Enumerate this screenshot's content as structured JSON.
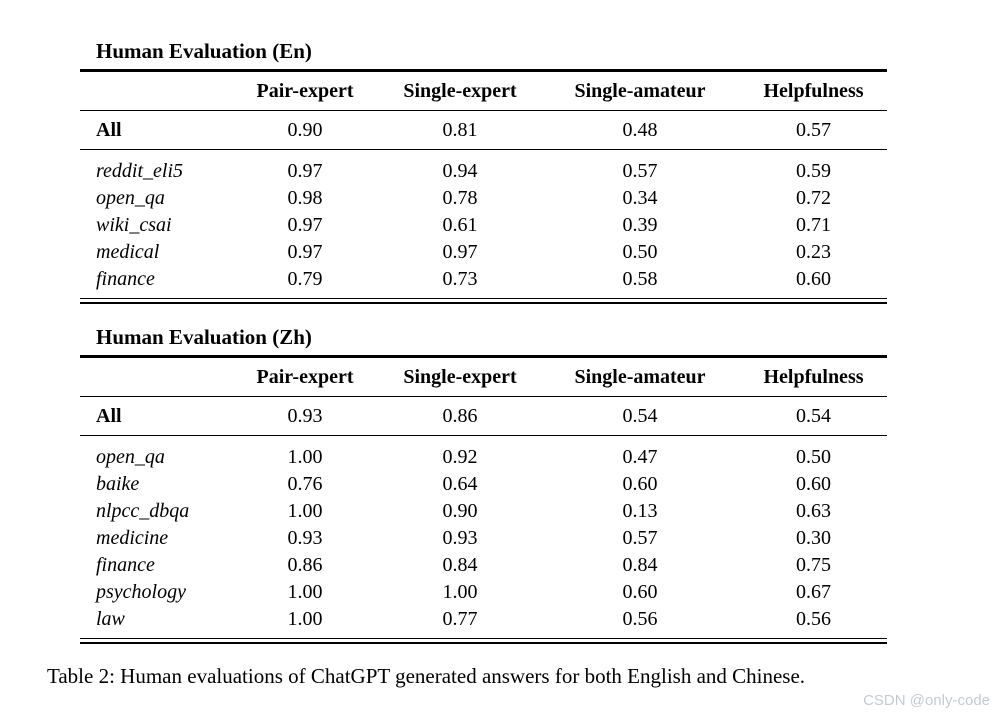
{
  "page": {
    "caption": "Table 2: Human evaluations of ChatGPT generated answers for both English and Chinese.",
    "watermark": "CSDN @only-code",
    "watermark_color": "#c6c9d4",
    "text_color": "#000000",
    "background_color": "#ffffff"
  },
  "tables": [
    {
      "title": "Human Evaluation (En)",
      "columns": [
        "Pair-expert",
        "Single-expert",
        "Single-amateur",
        "Helpfulness"
      ],
      "summary_row": {
        "label": "All",
        "values": [
          "0.90",
          "0.81",
          "0.48",
          "0.57"
        ]
      },
      "rows": [
        {
          "label": "reddit_eli5",
          "values": [
            "0.97",
            "0.94",
            "0.57",
            "0.59"
          ]
        },
        {
          "label": "open_qa",
          "values": [
            "0.98",
            "0.78",
            "0.34",
            "0.72"
          ]
        },
        {
          "label": "wiki_csai",
          "values": [
            "0.97",
            "0.61",
            "0.39",
            "0.71"
          ]
        },
        {
          "label": "medical",
          "values": [
            "0.97",
            "0.97",
            "0.50",
            "0.23"
          ]
        },
        {
          "label": "finance",
          "values": [
            "0.79",
            "0.73",
            "0.58",
            "0.60"
          ]
        }
      ]
    },
    {
      "title": "Human Evaluation (Zh)",
      "columns": [
        "Pair-expert",
        "Single-expert",
        "Single-amateur",
        "Helpfulness"
      ],
      "summary_row": {
        "label": "All",
        "values": [
          "0.93",
          "0.86",
          "0.54",
          "0.54"
        ]
      },
      "rows": [
        {
          "label": "open_qa",
          "values": [
            "1.00",
            "0.92",
            "0.47",
            "0.50"
          ]
        },
        {
          "label": "baike",
          "values": [
            "0.76",
            "0.64",
            "0.60",
            "0.60"
          ]
        },
        {
          "label": "nlpcc_dbqa",
          "values": [
            "1.00",
            "0.90",
            "0.13",
            "0.63"
          ]
        },
        {
          "label": "medicine",
          "values": [
            "0.93",
            "0.93",
            "0.57",
            "0.30"
          ]
        },
        {
          "label": "finance",
          "values": [
            "0.86",
            "0.84",
            "0.84",
            "0.75"
          ]
        },
        {
          "label": "psychology",
          "values": [
            "1.00",
            "1.00",
            "0.60",
            "0.67"
          ]
        },
        {
          "label": "law",
          "values": [
            "1.00",
            "0.77",
            "0.56",
            "0.56"
          ]
        }
      ]
    }
  ]
}
